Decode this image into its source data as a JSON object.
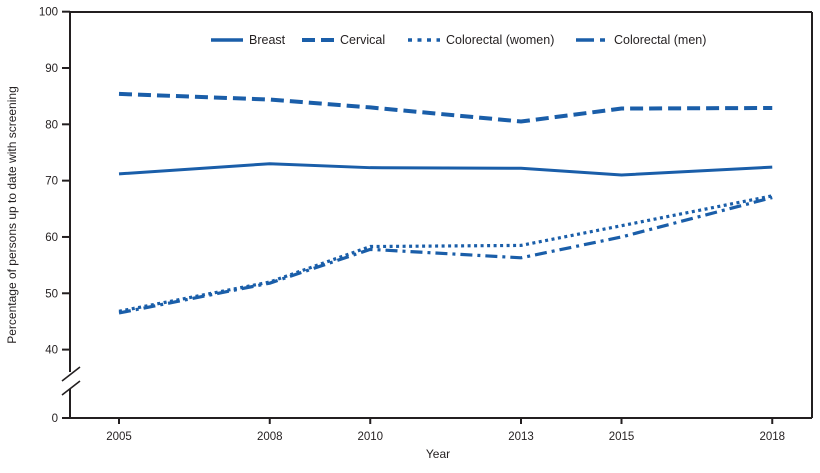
{
  "colors": {
    "line": "#1a5ea9",
    "axis": "#231f20",
    "background": "#ffffff"
  },
  "legend": {
    "items": [
      {
        "label": "Breast",
        "style": "solid"
      },
      {
        "label": "Cervical",
        "style": "dashed"
      },
      {
        "label": "Colorectal (women)",
        "style": "dotted"
      },
      {
        "label": "Colorectal (men)",
        "style": "dash-dot"
      }
    ]
  },
  "chart_data": {
    "type": "line",
    "title": "",
    "xlabel": "Year",
    "ylabel": "Percentage of persons up to date with screening",
    "x": [
      2005,
      2008,
      2010,
      2013,
      2015,
      2018
    ],
    "x_tick_labels": [
      "2005",
      "2008",
      "2010",
      "2013",
      "2015",
      "2018"
    ],
    "y_ticks": [
      0,
      40,
      50,
      60,
      70,
      80,
      90,
      100
    ],
    "y_axis_break_between": [
      0,
      40
    ],
    "ylim_visible": [
      40,
      100
    ],
    "grid": "off",
    "legend_position": "top",
    "series": [
      {
        "name": "Breast",
        "style": "solid",
        "values": [
          71.2,
          73.0,
          72.3,
          72.2,
          71.0,
          72.4
        ]
      },
      {
        "name": "Cervical",
        "style": "dashed",
        "values": [
          85.4,
          84.4,
          83.0,
          80.5,
          82.8,
          82.9
        ]
      },
      {
        "name": "Colorectal (women)",
        "style": "dotted",
        "values": [
          46.8,
          52.0,
          58.3,
          58.5,
          62.0,
          67.3
        ]
      },
      {
        "name": "Colorectal (men)",
        "style": "dash-dot",
        "values": [
          46.5,
          51.8,
          57.8,
          56.3,
          60.0,
          67.0
        ]
      }
    ]
  }
}
